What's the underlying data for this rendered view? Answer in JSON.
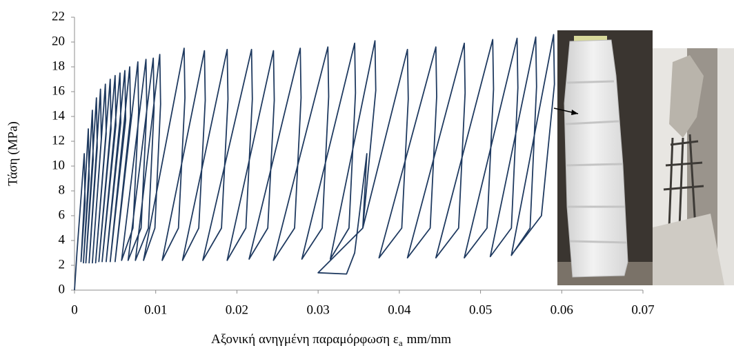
{
  "chart_data": {
    "type": "line",
    "y_label": "Τάση (MPa)",
    "x_label": {
      "text": "Αξονική ανηγμένη παραμόρφωση ε",
      "subscript": "a",
      "unit": "mm/mm"
    },
    "color": "#1f3a60",
    "xlim": [
      0,
      0.07
    ],
    "xticks": [
      0,
      0.01,
      0.02,
      0.03,
      0.04,
      0.05,
      0.06,
      0.07
    ],
    "ylim": [
      0,
      22
    ],
    "yticks": [
      0,
      2,
      4,
      6,
      8,
      10,
      12,
      14,
      16,
      18,
      20,
      22
    ],
    "x": [
      0,
      0.0003,
      0.0012,
      0.0013,
      0.0008,
      0.0017,
      0.0018,
      0.0011,
      0.0022,
      0.0023,
      0.0014,
      0.0027,
      0.0028,
      0.0018,
      0.0032,
      0.0033,
      0.0022,
      0.0038,
      0.0039,
      0.0026,
      0.0044,
      0.0045,
      0.003,
      0.005,
      0.0051,
      0.0034,
      0.0056,
      0.0057,
      0.0039,
      0.0062,
      0.0063,
      0.0044,
      0.0068,
      0.0069,
      0.005,
      0.0078,
      0.0079,
      0.0072,
      0.0058,
      0.0088,
      0.0089,
      0.0082,
      0.0066,
      0.0097,
      0.0098,
      0.0091,
      0.0075,
      0.0105,
      0.0106,
      0.0099,
      0.0085,
      0.0135,
      0.0136,
      0.0128,
      0.0108,
      0.016,
      0.0161,
      0.0153,
      0.0133,
      0.0188,
      0.0189,
      0.0181,
      0.0158,
      0.0218,
      0.0219,
      0.0211,
      0.0188,
      0.0245,
      0.0246,
      0.0238,
      0.0215,
      0.0278,
      0.0279,
      0.0271,
      0.0245,
      0.0312,
      0.0313,
      0.0305,
      0.028,
      0.0345,
      0.0346,
      0.0338,
      0.0315,
      0.037,
      0.0371,
      0.0355,
      0.03,
      0.0335,
      0.0345,
      0.036,
      0.0355,
      0.041,
      0.0411,
      0.0403,
      0.0375,
      0.0445,
      0.0446,
      0.0438,
      0.041,
      0.048,
      0.0481,
      0.0473,
      0.0445,
      0.0515,
      0.0516,
      0.0508,
      0.048,
      0.0545,
      0.0546,
      0.0538,
      0.0512,
      0.0568,
      0.0569,
      0.0561,
      0.0538,
      0.059,
      0.0591,
      0.0575,
      0.054
    ],
    "values": [
      0,
      3,
      11,
      7,
      2.3,
      13,
      9,
      2.2,
      14.5,
      10.5,
      2.2,
      15.5,
      11.5,
      2.2,
      16.2,
      12.2,
      2.2,
      16.6,
      12.6,
      2.2,
      17,
      13,
      2.3,
      17.3,
      13.3,
      2.3,
      17.5,
      13.5,
      2.3,
      17.7,
      13.7,
      2.3,
      18,
      14,
      2.3,
      18.4,
      14.4,
      5,
      2.4,
      18.6,
      14.6,
      5,
      2.4,
      18.7,
      14.7,
      5,
      2.4,
      19,
      15,
      5,
      2.4,
      19.5,
      15.5,
      5,
      2.4,
      19.3,
      15.3,
      5,
      2.4,
      19.4,
      15.4,
      5,
      2.4,
      19.4,
      15.4,
      5,
      2.4,
      19.3,
      15.3,
      5,
      2.5,
      19.5,
      15.5,
      5,
      2.4,
      19.6,
      15.6,
      5,
      2.5,
      19.9,
      15.9,
      5,
      2.5,
      20.1,
      16.1,
      5,
      1.4,
      1.3,
      3,
      11,
      5,
      19.4,
      15.4,
      5,
      2.6,
      19.6,
      15.6,
      5,
      2.6,
      19.9,
      15.9,
      5,
      2.6,
      20.2,
      16.2,
      5,
      2.6,
      20.3,
      16.3,
      5,
      2.7,
      20.4,
      16.4,
      5,
      2.8,
      20.6,
      16.6,
      6,
      3
    ]
  }
}
